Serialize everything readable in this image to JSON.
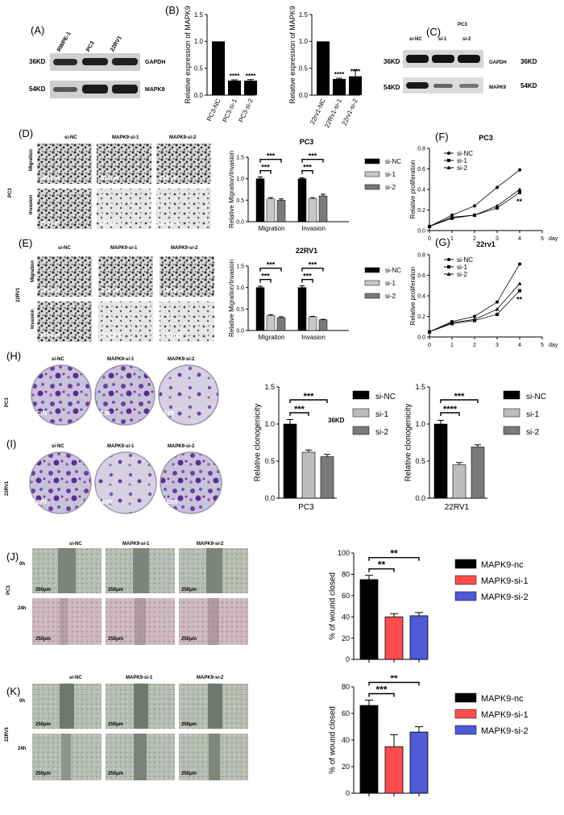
{
  "panels": {
    "A": "(A)",
    "B": "(B)",
    "C": "(C)",
    "D": "(D)",
    "E": "(E)",
    "F": "(F)",
    "G": "(G)",
    "H": "(H)",
    "I": "(I)",
    "J": "(J)",
    "K": "(K)"
  },
  "panelA": {
    "lanes": [
      "RWPE-1",
      "PC3",
      "22RV1"
    ],
    "bands": [
      {
        "kd": "36KD",
        "name": "GAPDH"
      },
      {
        "kd": "54KD",
        "name": "MAPK9"
      }
    ]
  },
  "panelC": {
    "title": "PC3",
    "lanes": [
      "si-NC",
      "si-1",
      "si-2"
    ],
    "bands": [
      {
        "kd": "36KD",
        "name": "GAPDH",
        "kd2": "36KD"
      },
      {
        "kd": "54KD",
        "name": "MAPK9",
        "kd2": "54KD"
      }
    ]
  },
  "micro": {
    "cols": [
      "si-NC",
      "MAPK9-si-1",
      "MAPK9-si-2"
    ],
    "rows_DE": [
      "Migration",
      "Invasion"
    ],
    "line_D": "PC3",
    "line_E": "22RV1",
    "scale_DE": "100 μm",
    "line_H": "PC3",
    "line_I": "22RV1",
    "scale_HI": "1cm",
    "rows_JK": [
      "0h",
      "24h"
    ],
    "line_J": "PC3",
    "line_K": "22RV1",
    "scale_JK": "250μm"
  },
  "stray_label": "36KD",
  "chart_data": [
    {
      "id": "B1",
      "type": "bar",
      "ylabel": "Relative expression of MAPK9",
      "categories": [
        "PC3-NC",
        "PC3-si-1",
        "PC3-si-2"
      ],
      "values": [
        1.0,
        0.27,
        0.27
      ],
      "errors": [
        0,
        0.015,
        0.02
      ],
      "sig": [
        "",
        "****",
        "****"
      ],
      "ylim": [
        0,
        1.5
      ],
      "yticks": [
        "0.0",
        "0.5",
        "1.0",
        "1.5"
      ]
    },
    {
      "id": "B2",
      "type": "bar",
      "ylabel": "Relative expression of MAPK9",
      "categories": [
        "22rv1-NC",
        "22Rv1-si-1",
        "22rv1-si-2"
      ],
      "values": [
        1.0,
        0.3,
        0.35
      ],
      "errors": [
        0,
        0.015,
        0.12
      ],
      "sig": [
        "",
        "****",
        "****"
      ],
      "ylim": [
        0,
        1.5
      ],
      "yticks": [
        "0.0",
        "0.5",
        "1.0",
        "1.5"
      ]
    },
    {
      "id": "D",
      "type": "bar",
      "title": "PC3",
      "ylabel": "Relative Migration/Invasion",
      "categories": [
        "Migration",
        "Invasion"
      ],
      "series": [
        {
          "name": "si-NC",
          "values": [
            1.0,
            1.0
          ]
        },
        {
          "name": "si-1",
          "values": [
            0.53,
            0.54
          ]
        },
        {
          "name": "si-2",
          "values": [
            0.5,
            0.6
          ]
        }
      ],
      "errors": [
        [
          0.04,
          0.02
        ],
        [
          0.03,
          0.02
        ],
        [
          0.03,
          0.04
        ]
      ],
      "sig": [
        "***",
        "***",
        "***",
        "***"
      ],
      "ylim": [
        0,
        1.5
      ],
      "yticks": [
        "0.0",
        "0.5",
        "1.0",
        "1.5"
      ]
    },
    {
      "id": "E",
      "type": "bar",
      "title": "22RV1",
      "ylabel": "Relative Migration/Invasion",
      "categories": [
        "Migration",
        "Invasion"
      ],
      "series": [
        {
          "name": "si-NC",
          "values": [
            1.0,
            1.0
          ]
        },
        {
          "name": "si-1",
          "values": [
            0.35,
            0.32
          ]
        },
        {
          "name": "si-2",
          "values": [
            0.3,
            0.25
          ]
        }
      ],
      "errors": [
        [
          0.03,
          0.04
        ],
        [
          0.02,
          0.01
        ],
        [
          0.02,
          0.01
        ]
      ],
      "sig": [
        "***",
        "***",
        "***",
        "***"
      ],
      "ylim": [
        0,
        1.5
      ],
      "yticks": [
        "0.0",
        "0.5",
        "1.0",
        "1.5"
      ]
    },
    {
      "id": "F",
      "type": "line",
      "title": "PC3",
      "ylabel": "Relative proliferation",
      "x": [
        0,
        1,
        2,
        3,
        4
      ],
      "xunit": "day",
      "xticks": [
        "0",
        "1",
        "2",
        "3",
        "4",
        "5"
      ],
      "series": [
        {
          "name": "si-NC",
          "values": [
            0.04,
            0.15,
            0.24,
            0.42,
            0.59
          ]
        },
        {
          "name": "si-1",
          "values": [
            0.04,
            0.12,
            0.15,
            0.22,
            0.37
          ]
        },
        {
          "name": "si-2",
          "values": [
            0.04,
            0.13,
            0.15,
            0.24,
            0.4
          ]
        }
      ],
      "sig": "**",
      "ylim": [
        0,
        0.8
      ],
      "yticks": [
        "0.0",
        "0.2",
        "0.4",
        "0.6",
        "0.8"
      ]
    },
    {
      "id": "G",
      "type": "line",
      "title": "22rv1",
      "ylabel": "Relative proliferation",
      "x": [
        0,
        1,
        2,
        3,
        4
      ],
      "xunit": "day",
      "xticks": [
        "0",
        "1",
        "2",
        "3",
        "4",
        "5"
      ],
      "series": [
        {
          "name": "si-NC",
          "values": [
            0.05,
            0.15,
            0.2,
            0.34,
            0.71
          ]
        },
        {
          "name": "si-1",
          "values": [
            0.05,
            0.13,
            0.16,
            0.22,
            0.45
          ]
        },
        {
          "name": "si-2",
          "values": [
            0.05,
            0.14,
            0.17,
            0.27,
            0.52
          ]
        }
      ],
      "sig": "**",
      "ylim": [
        0,
        0.8
      ],
      "yticks": [
        "0.0",
        "0.2",
        "0.4",
        "0.6",
        "0.8"
      ]
    },
    {
      "id": "H",
      "type": "bar",
      "ylabel": "Relative clonogenicity",
      "xlabel": "PC3",
      "categories": [
        "si-NC",
        "si-1",
        "si-2"
      ],
      "values": [
        1.0,
        0.62,
        0.56
      ],
      "errors": [
        0.06,
        0.03,
        0.03
      ],
      "sig": [
        "***",
        "***"
      ],
      "ylim": [
        0,
        1.5
      ],
      "yticks": [
        "0.0",
        "0.5",
        "1.0",
        "1.5"
      ]
    },
    {
      "id": "I",
      "type": "bar",
      "ylabel": "Relative clonogenicity",
      "xlabel": "22RV1",
      "categories": [
        "si-NC",
        "si-1",
        "si-2"
      ],
      "values": [
        1.0,
        0.45,
        0.69
      ],
      "errors": [
        0.05,
        0.03,
        0.03
      ],
      "sig": [
        "****",
        "***"
      ],
      "ylim": [
        0,
        1.5
      ],
      "yticks": [
        "0.0",
        "0.5",
        "1.0",
        "1.5"
      ]
    },
    {
      "id": "J",
      "type": "bar",
      "ylabel": "% of wound closed",
      "categories": [
        "MAPK9-nc",
        "MAPK9-si-1",
        "MAPK9-si-2"
      ],
      "values": [
        75,
        40,
        41
      ],
      "errors": [
        4,
        3,
        3
      ],
      "colors": [
        "#000000",
        "#ff4d4d",
        "#4e5bd4"
      ],
      "sig": [
        "**",
        "**"
      ],
      "ylim": [
        0,
        100
      ],
      "yticks": [
        "0",
        "20",
        "40",
        "60",
        "80",
        "100"
      ]
    },
    {
      "id": "K",
      "type": "bar",
      "ylabel": "% of wound closed",
      "categories": [
        "MAPK9-nc",
        "MAPK9-si-1",
        "MAPK9-si-2"
      ],
      "values": [
        66,
        35,
        46
      ],
      "errors": [
        4,
        9,
        4
      ],
      "colors": [
        "#000000",
        "#ff4d4d",
        "#4e5bd4"
      ],
      "sig": [
        "***",
        "**"
      ],
      "ylim": [
        0,
        80
      ],
      "yticks": [
        "0",
        "20",
        "40",
        "60",
        "80"
      ]
    }
  ]
}
